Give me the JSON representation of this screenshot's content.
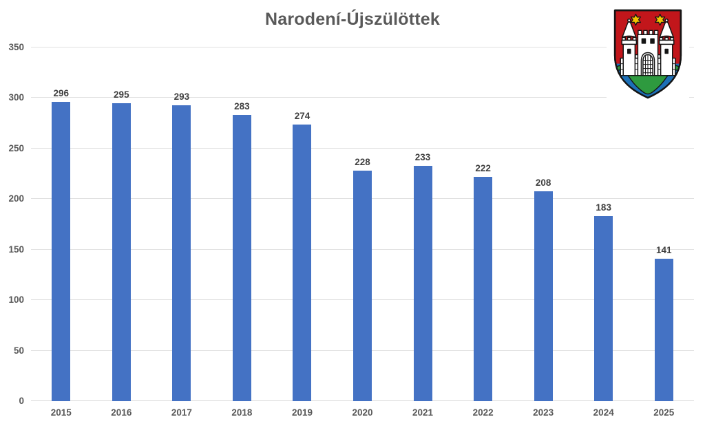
{
  "chart_data": {
    "type": "bar",
    "title": "Narodení-Újszülöttek",
    "categories": [
      "2015",
      "2016",
      "2017",
      "2018",
      "2019",
      "2020",
      "2021",
      "2022",
      "2023",
      "2024",
      "2025"
    ],
    "values": [
      296,
      295,
      293,
      283,
      274,
      228,
      233,
      222,
      208,
      183,
      141
    ],
    "xlabel": "",
    "ylabel": "",
    "ylim": [
      0,
      350
    ],
    "yticks": [
      0,
      50,
      100,
      150,
      200,
      250,
      300,
      350
    ],
    "grid": true,
    "legend": false,
    "data_labels": true,
    "bar_color": "#4472C4",
    "gridline_color": "#E0E0E0",
    "title_color": "#595959",
    "axis_label_color": "#595959",
    "data_label_color": "#404040"
  },
  "emblem": {
    "name": "city-coat-of-arms",
    "colors": {
      "field_red": "#C2161B",
      "castle_white": "#FFFFFF",
      "outline_black": "#151515",
      "mount_green": "#2E9A3F",
      "water_blue": "#1C70B7",
      "star_gold": "#F4C400"
    }
  }
}
